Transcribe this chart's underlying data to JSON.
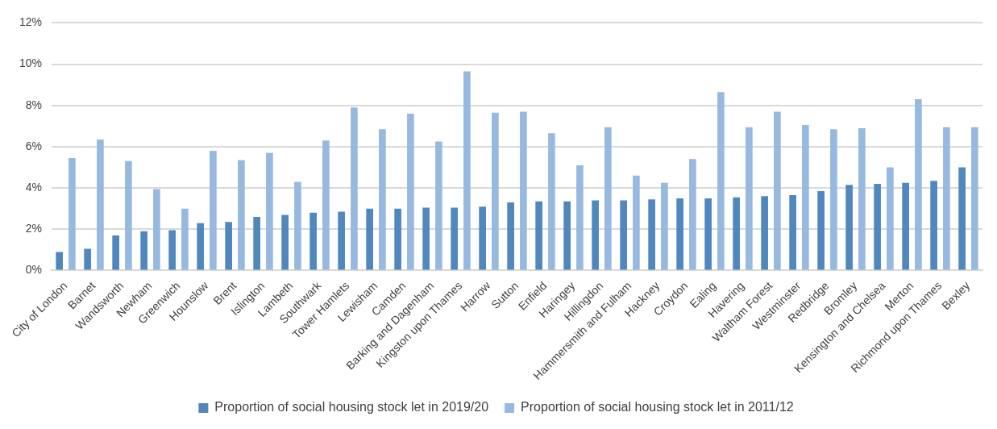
{
  "chart_data": {
    "type": "bar",
    "categories": [
      "City of London",
      "Barnet",
      "Wandsworth",
      "Newham",
      "Greenwich",
      "Hounslow",
      "Brent",
      "Islington",
      "Lambeth",
      "Southwark",
      "Tower Hamlets",
      "Lewisham",
      "Camden",
      "Barking and Dagenham",
      "Kingston upon Thames",
      "Harrow",
      "Sutton",
      "Enfield",
      "Haringey",
      "Hillingdon",
      "Hammersmith and Fulham",
      "Hackney",
      "Croydon",
      "Ealing",
      "Havering",
      "Waltham Forest",
      "Westminster",
      "Redbridge",
      "Bromley",
      "Kensington and Chelsea",
      "Merton",
      "Richmond upon Thames",
      "Bexley"
    ],
    "series": [
      {
        "name": "Proportion of social housing stock let in 2019/20",
        "color": "#4f87be",
        "values": [
          0.9,
          1.05,
          1.7,
          1.9,
          1.95,
          2.3,
          2.35,
          2.6,
          2.7,
          2.8,
          2.85,
          3.0,
          3.0,
          3.05,
          3.05,
          3.1,
          3.3,
          3.35,
          3.35,
          3.4,
          3.4,
          3.45,
          3.5,
          3.5,
          3.55,
          3.6,
          3.65,
          3.85,
          4.15,
          4.2,
          4.25,
          4.35,
          5.0
        ]
      },
      {
        "name": "Proportion of social housing stock let in 2011/12",
        "color": "#97b9e0",
        "values": [
          5.45,
          6.35,
          5.3,
          3.95,
          3.0,
          5.8,
          5.35,
          5.7,
          4.3,
          6.3,
          7.9,
          6.85,
          7.6,
          6.25,
          9.65,
          7.65,
          7.7,
          6.65,
          5.1,
          6.95,
          4.6,
          4.25,
          5.4,
          8.65,
          6.95,
          7.7,
          7.05,
          6.85,
          6.9,
          5.0,
          8.3,
          6.95,
          6.95
        ]
      }
    ],
    "ylim": [
      0,
      12
    ],
    "yticks": [
      {
        "value": 0,
        "label": "0%"
      },
      {
        "value": 2,
        "label": "2%"
      },
      {
        "value": 4,
        "label": "4%"
      },
      {
        "value": 6,
        "label": "6%"
      },
      {
        "value": 8,
        "label": "8%"
      },
      {
        "value": 10,
        "label": "10%"
      },
      {
        "value": 12,
        "label": "12%"
      }
    ],
    "grid": "y",
    "legend": "bottom"
  }
}
